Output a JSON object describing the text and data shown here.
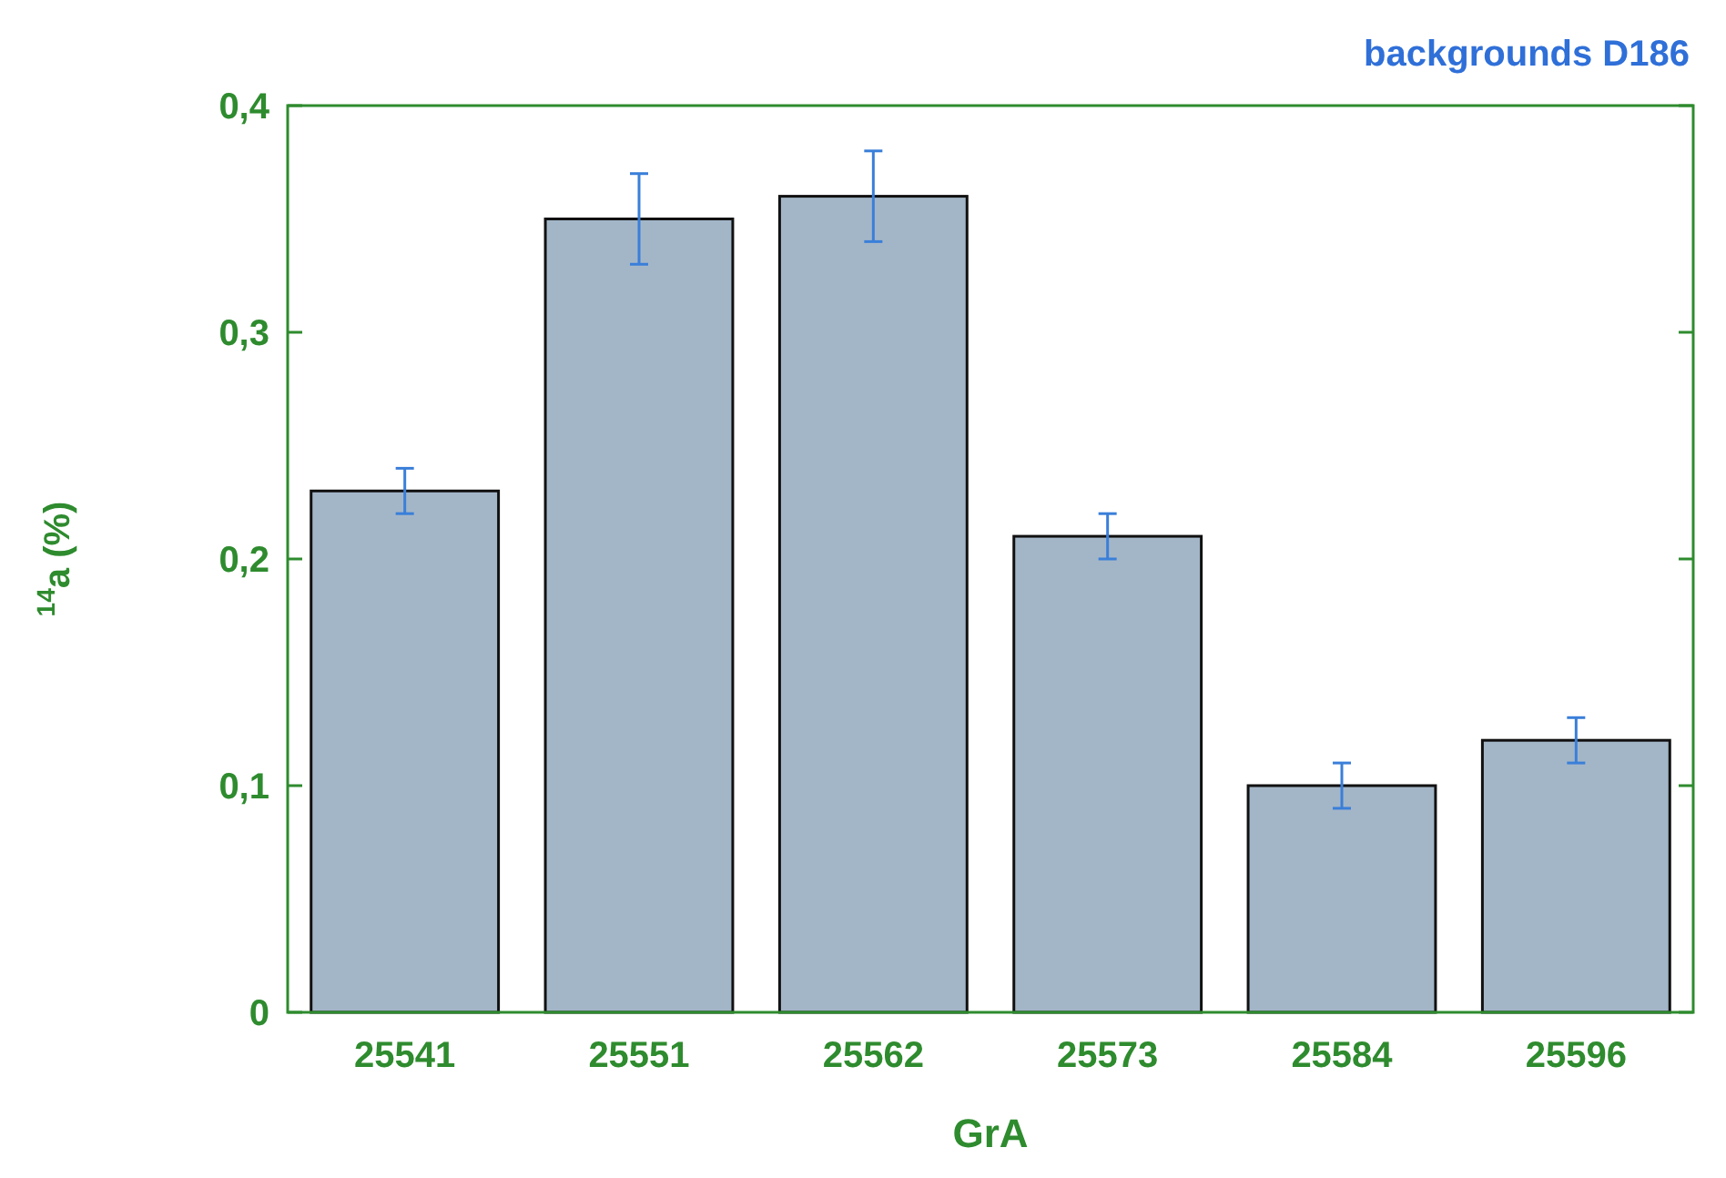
{
  "chart_data": {
    "type": "bar",
    "title": "backgrounds D186",
    "xlabel": "GrA",
    "ylabel": "$^{14}$a (%)",
    "categories": [
      "25541",
      "25551",
      "25562",
      "25573",
      "25584",
      "25596"
    ],
    "values": [
      0.23,
      0.35,
      0.36,
      0.21,
      0.1,
      0.12
    ],
    "errors": [
      0.01,
      0.02,
      0.02,
      0.01,
      0.01,
      0.01
    ],
    "color": "#a3b6c8",
    "ylim": [
      0,
      0.4
    ],
    "yticks": [
      {
        "value": 0,
        "label": "0"
      },
      {
        "value": 0.1,
        "label": "0,1"
      },
      {
        "value": 0.2,
        "label": "0,2"
      },
      {
        "value": 0.3,
        "label": "0,3"
      },
      {
        "value": 0.4,
        "label": "0,4"
      }
    ],
    "grid": false
  }
}
